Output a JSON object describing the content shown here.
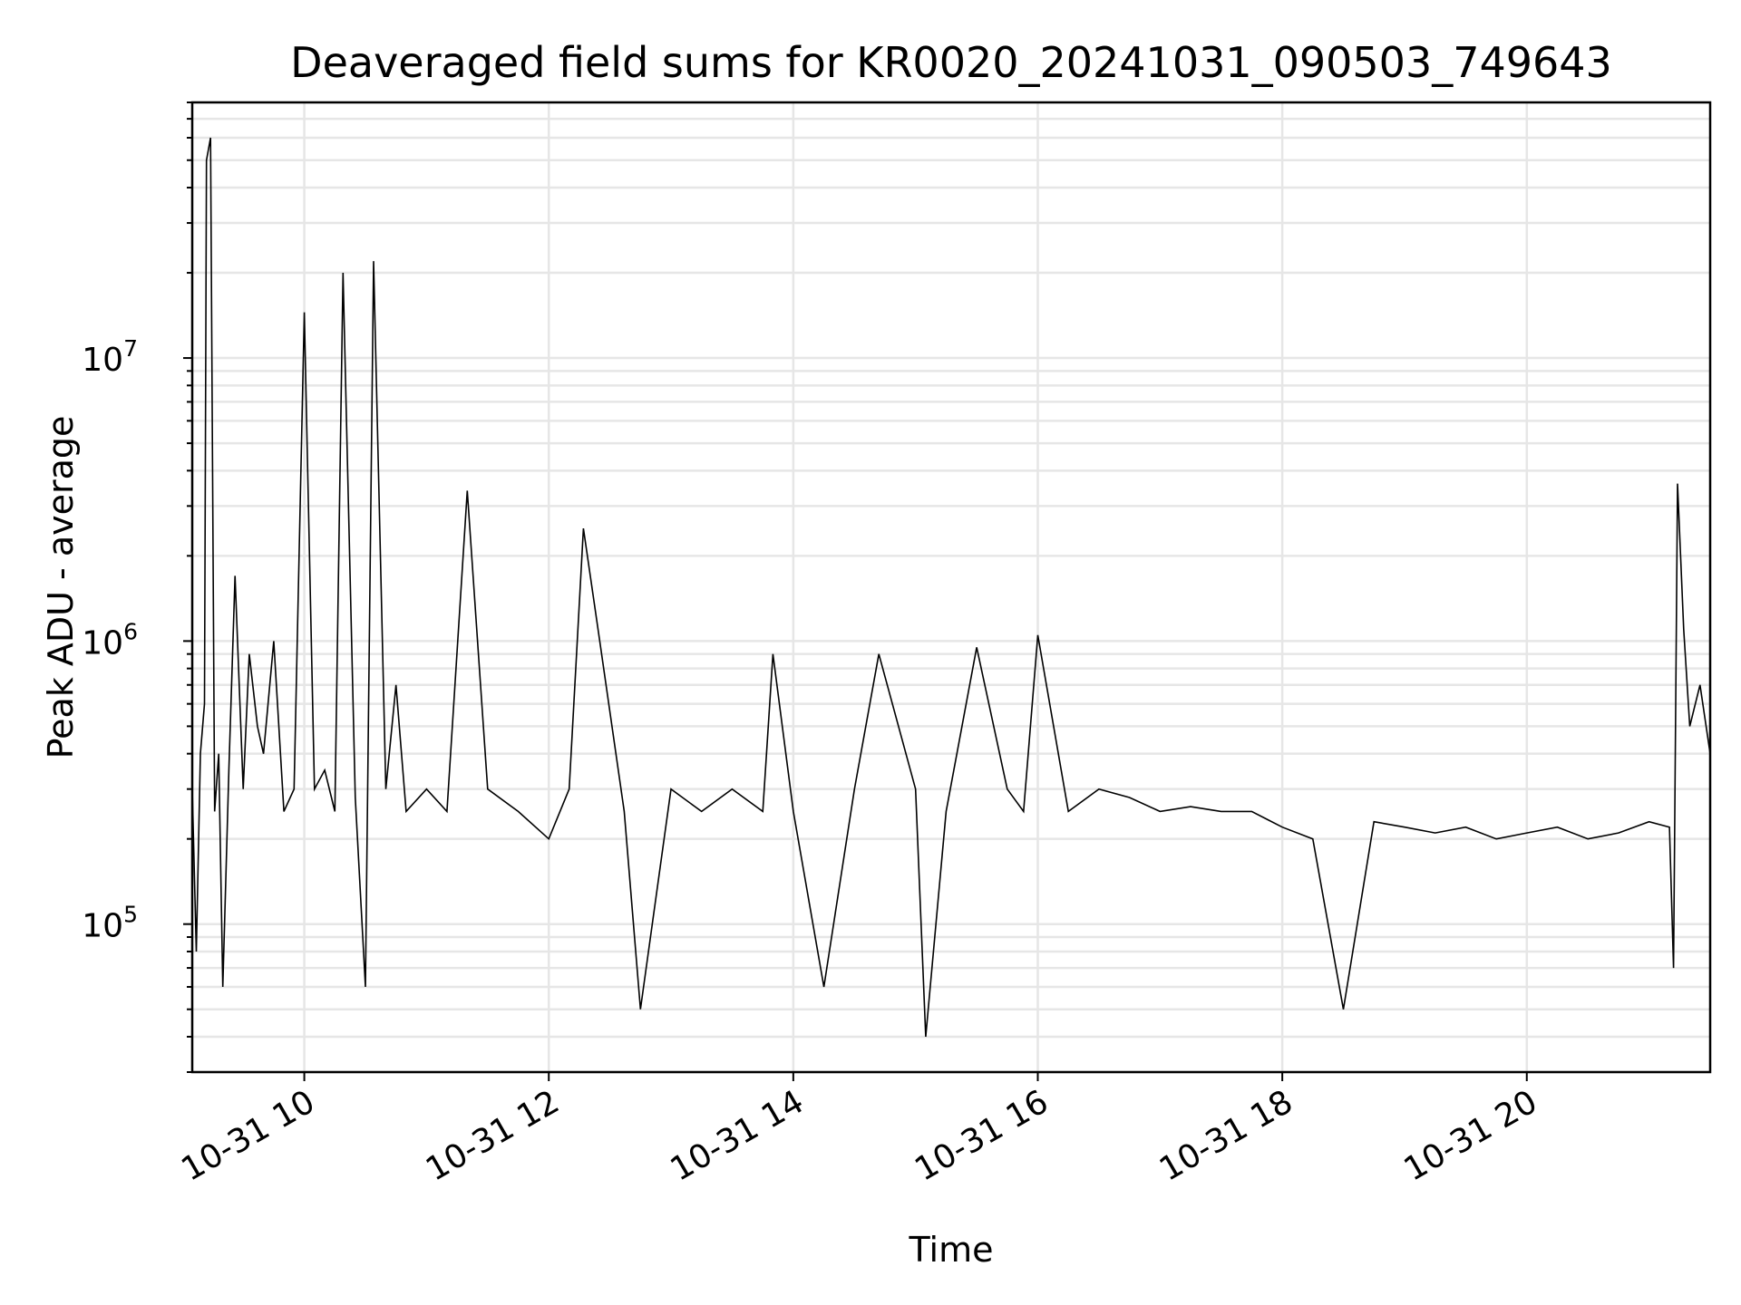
{
  "chart_data": {
    "type": "line",
    "title": "Deaveraged field sums for KR0020_20241031_090503_749643",
    "xlabel": "Time",
    "ylabel": "Peak ADU - average",
    "yscale": "log",
    "ylim": [
      30000,
      80000000
    ],
    "xlim": [
      "2024-10-31T09:05:00",
      "2024-10-31T21:30:00"
    ],
    "grid": true,
    "line_color": "#000000",
    "x_ticks": [
      {
        "value": "2024-10-31T10:00:00",
        "label": "10-31 10"
      },
      {
        "value": "2024-10-31T12:00:00",
        "label": "10-31 12"
      },
      {
        "value": "2024-10-31T14:00:00",
        "label": "10-31 14"
      },
      {
        "value": "2024-10-31T16:00:00",
        "label": "10-31 16"
      },
      {
        "value": "2024-10-31T18:00:00",
        "label": "10-31 18"
      },
      {
        "value": "2024-10-31T20:00:00",
        "label": "10-31 20"
      }
    ],
    "y_ticks": [
      {
        "value": 100000,
        "base": "10",
        "exp": "5"
      },
      {
        "value": 1000000,
        "base": "10",
        "exp": "6"
      },
      {
        "value": 10000000,
        "base": "10",
        "exp": "7"
      }
    ],
    "series": [
      {
        "x": [
          "2024-10-31T09:05:00",
          "2024-10-31T09:07:00",
          "2024-10-31T09:09:00",
          "2024-10-31T09:11:00",
          "2024-10-31T09:12:00",
          "2024-10-31T09:14:00",
          "2024-10-31T09:16:00",
          "2024-10-31T09:18:00",
          "2024-10-31T09:20:00",
          "2024-10-31T09:23:00",
          "2024-10-31T09:26:00",
          "2024-10-31T09:30:00",
          "2024-10-31T09:33:00",
          "2024-10-31T09:37:00",
          "2024-10-31T09:40:00",
          "2024-10-31T09:45:00",
          "2024-10-31T09:50:00",
          "2024-10-31T09:55:00",
          "2024-10-31T10:00:00",
          "2024-10-31T10:05:00",
          "2024-10-31T10:10:00",
          "2024-10-31T10:15:00",
          "2024-10-31T10:19:00",
          "2024-10-31T10:25:00",
          "2024-10-31T10:30:00",
          "2024-10-31T10:34:00",
          "2024-10-31T10:40:00",
          "2024-10-31T10:45:00",
          "2024-10-31T10:50:00",
          "2024-10-31T11:00:00",
          "2024-10-31T11:10:00",
          "2024-10-31T11:20:00",
          "2024-10-31T11:30:00",
          "2024-10-31T11:45:00",
          "2024-10-31T12:00:00",
          "2024-10-31T12:10:00",
          "2024-10-31T12:17:00",
          "2024-10-31T12:25:00",
          "2024-10-31T12:37:00",
          "2024-10-31T12:45:00",
          "2024-10-31T13:00:00",
          "2024-10-31T13:15:00",
          "2024-10-31T13:30:00",
          "2024-10-31T13:45:00",
          "2024-10-31T13:50:00",
          "2024-10-31T14:00:00",
          "2024-10-31T14:15:00",
          "2024-10-31T14:30:00",
          "2024-10-31T14:42:00",
          "2024-10-31T15:00:00",
          "2024-10-31T15:05:00",
          "2024-10-31T15:15:00",
          "2024-10-31T15:30:00",
          "2024-10-31T15:45:00",
          "2024-10-31T15:53:00",
          "2024-10-31T16:00:00",
          "2024-10-31T16:15:00",
          "2024-10-31T16:30:00",
          "2024-10-31T16:45:00",
          "2024-10-31T17:00:00",
          "2024-10-31T17:15:00",
          "2024-10-31T17:30:00",
          "2024-10-31T17:45:00",
          "2024-10-31T18:00:00",
          "2024-10-31T18:15:00",
          "2024-10-31T18:30:00",
          "2024-10-31T18:45:00",
          "2024-10-31T19:00:00",
          "2024-10-31T19:15:00",
          "2024-10-31T19:30:00",
          "2024-10-31T19:45:00",
          "2024-10-31T20:00:00",
          "2024-10-31T20:15:00",
          "2024-10-31T20:30:00",
          "2024-10-31T20:45:00",
          "2024-10-31T21:00:00",
          "2024-10-31T21:10:00",
          "2024-10-31T21:12:00",
          "2024-10-31T21:14:00",
          "2024-10-31T21:17:00",
          "2024-10-31T21:20:00",
          "2024-10-31T21:25:00",
          "2024-10-31T21:30:00"
        ],
        "y": [
          300000,
          80000,
          400000,
          600000,
          50000000,
          60000000,
          250000,
          400000,
          60000,
          350000,
          1700000,
          300000,
          900000,
          500000,
          400000,
          1000000,
          250000,
          300000,
          14500000,
          300000,
          350000,
          250000,
          20000000,
          280000,
          60000,
          22000000,
          300000,
          700000,
          250000,
          300000,
          250000,
          3400000,
          300000,
          250000,
          200000,
          300000,
          2500000,
          1000000,
          250000,
          50000,
          300000,
          250000,
          300000,
          250000,
          900000,
          250000,
          60000,
          300000,
          900000,
          300000,
          40000,
          250000,
          950000,
          300000,
          250000,
          1050000,
          250000,
          300000,
          280000,
          250000,
          260000,
          250000,
          250000,
          220000,
          200000,
          50000,
          230000,
          220000,
          210000,
          220000,
          200000,
          210000,
          220000,
          200000,
          210000,
          230000,
          220000,
          70000,
          3600000,
          1100000,
          500000,
          700000,
          400000
        ]
      }
    ]
  }
}
